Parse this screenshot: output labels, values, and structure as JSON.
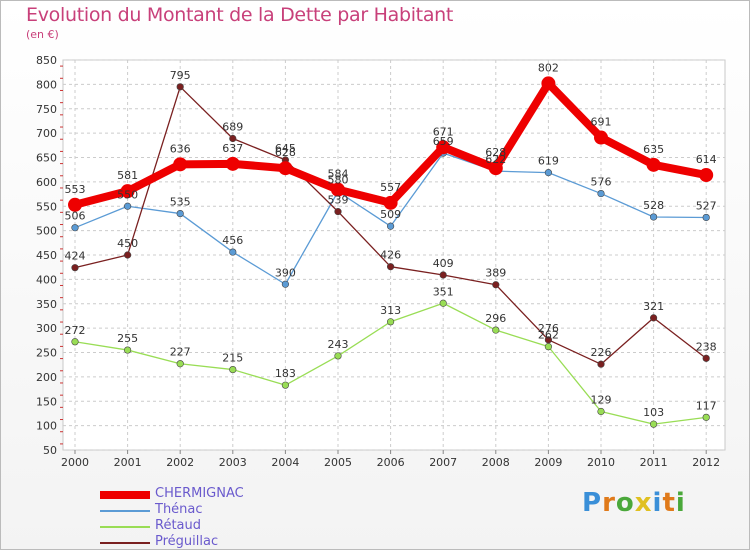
{
  "title": "Evolution du Montant de la Dette par Habitant",
  "subtitle": "(en €)",
  "brand": {
    "text": "Proxiti",
    "letter_colors": [
      "#3a8fd8",
      "#e07a1a",
      "#4aa83a",
      "#e0c020",
      "#3a8fd8",
      "#e07a1a",
      "#4aa83a"
    ]
  },
  "chart_data": {
    "type": "line",
    "categories": [
      "2000",
      "2001",
      "2002",
      "2003",
      "2004",
      "2005",
      "2006",
      "2007",
      "2008",
      "2009",
      "2010",
      "2011",
      "2012"
    ],
    "ylim": [
      50,
      850
    ],
    "yticks": [
      50,
      100,
      150,
      200,
      250,
      300,
      350,
      400,
      450,
      500,
      550,
      600,
      650,
      700,
      750,
      800,
      850
    ],
    "grid": true,
    "legend_position": "bottom-left",
    "series": [
      {
        "name": "CHERMIGNAC",
        "color": "#ee0000",
        "emphasis": true,
        "values": [
          553,
          581,
          636,
          637,
          628,
          584,
          557,
          671,
          628,
          802,
          691,
          635,
          614
        ]
      },
      {
        "name": "Thénac",
        "color": "#5b9bd5",
        "emphasis": false,
        "values": [
          506,
          550,
          535,
          456,
          390,
          580,
          509,
          659,
          622,
          619,
          576,
          528,
          527
        ]
      },
      {
        "name": "Rétaud",
        "color": "#99dd55",
        "emphasis": false,
        "values": [
          272,
          255,
          227,
          215,
          183,
          243,
          313,
          351,
          296,
          262,
          129,
          103,
          117
        ]
      },
      {
        "name": "Préguillac",
        "color": "#7a2020",
        "emphasis": false,
        "values": [
          424,
          450,
          795,
          689,
          645,
          539,
          426,
          409,
          389,
          276,
          226,
          321,
          238
        ]
      }
    ]
  }
}
